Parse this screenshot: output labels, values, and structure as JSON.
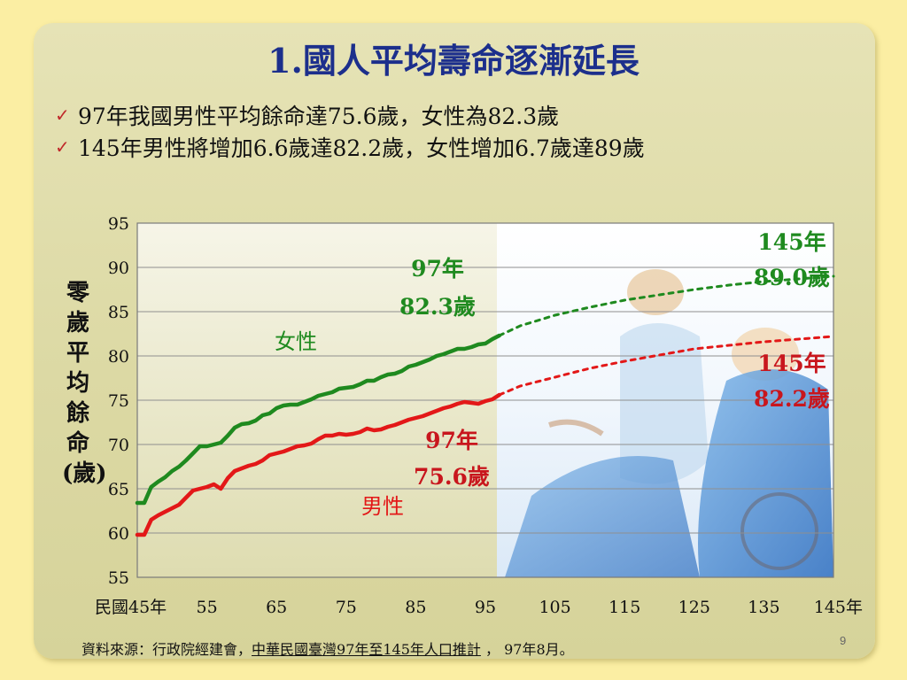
{
  "page": {
    "title": "1.國人平均壽命逐漸延長",
    "bullets": [
      "97年我國男性平均餘命達75.6歲，女性為82.3歲",
      "145年男性將增加6.6歲達82.2歲，女性增加6.7歲達89歲"
    ],
    "source_prefix": "資料來源：行政院經建會，",
    "source_link": "中華民國臺灣97年至145年人口推計",
    "source_suffix": " ， 97年8月。",
    "page_number": "9"
  },
  "chart_data": {
    "type": "line",
    "ylabel": "零歲平均餘命(歲)",
    "ylim": [
      55,
      95
    ],
    "yticks": [
      "95",
      "90",
      "85",
      "80",
      "75",
      "70",
      "65",
      "60",
      "55"
    ],
    "xlim": [
      45,
      145
    ],
    "xtick_labels": [
      "民國45年",
      "55",
      "65",
      "75",
      "85",
      "95",
      "105",
      "115",
      "125",
      "135",
      "145年"
    ],
    "colors": {
      "female": "#1f8a1f",
      "male": "#e31818"
    },
    "series": [
      {
        "name": "女性",
        "color": "#1f8a1f",
        "actual": {
          "x": [
            45,
            46,
            47,
            48,
            49,
            50,
            51,
            52,
            53,
            54,
            55,
            56,
            57,
            58,
            59,
            60,
            61,
            62,
            63,
            64,
            65,
            66,
            67,
            68,
            69,
            70,
            71,
            72,
            73,
            74,
            75,
            76,
            77,
            78,
            79,
            80,
            81,
            82,
            83,
            84,
            85,
            86,
            87,
            88,
            89,
            90,
            91,
            92,
            93,
            94,
            95,
            96,
            97
          ],
          "y": [
            63.4,
            63.4,
            65.2,
            65.8,
            66.3,
            67.0,
            67.5,
            68.2,
            69.0,
            69.8,
            69.8,
            70.0,
            70.2,
            71.0,
            71.9,
            72.3,
            72.4,
            72.7,
            73.3,
            73.5,
            74.1,
            74.4,
            74.5,
            74.5,
            74.8,
            75.1,
            75.5,
            75.7,
            75.9,
            76.3,
            76.4,
            76.5,
            76.8,
            77.2,
            77.2,
            77.6,
            77.9,
            78.0,
            78.3,
            78.8,
            79.0,
            79.3,
            79.6,
            80.0,
            80.2,
            80.5,
            80.8,
            80.8,
            81.0,
            81.3,
            81.4,
            81.9,
            82.3
          ]
        },
        "projected": {
          "x": [
            97,
            100,
            105,
            110,
            115,
            120,
            125,
            130,
            135,
            140,
            145
          ],
          "y": [
            82.3,
            83.4,
            84.6,
            85.5,
            86.3,
            86.9,
            87.5,
            88.0,
            88.4,
            88.7,
            89.0
          ]
        }
      },
      {
        "name": "男性",
        "color": "#e31818",
        "actual": {
          "x": [
            45,
            46,
            47,
            48,
            49,
            50,
            51,
            52,
            53,
            54,
            55,
            56,
            57,
            58,
            59,
            60,
            61,
            62,
            63,
            64,
            65,
            66,
            67,
            68,
            69,
            70,
            71,
            72,
            73,
            74,
            75,
            76,
            77,
            78,
            79,
            80,
            81,
            82,
            83,
            84,
            85,
            86,
            87,
            88,
            89,
            90,
            91,
            92,
            93,
            94,
            95,
            96,
            97
          ],
          "y": [
            59.8,
            59.8,
            61.5,
            62.0,
            62.4,
            62.8,
            63.2,
            64.0,
            64.8,
            65.0,
            65.2,
            65.5,
            65.0,
            66.2,
            67.0,
            67.3,
            67.6,
            67.8,
            68.2,
            68.8,
            69.0,
            69.2,
            69.5,
            69.8,
            69.9,
            70.1,
            70.6,
            71.0,
            71.0,
            71.2,
            71.1,
            71.2,
            71.4,
            71.8,
            71.6,
            71.7,
            72.0,
            72.2,
            72.5,
            72.8,
            73.0,
            73.2,
            73.5,
            73.8,
            74.1,
            74.3,
            74.6,
            74.8,
            74.7,
            74.6,
            74.9,
            75.1,
            75.6
          ]
        },
        "projected": {
          "x": [
            97,
            100,
            105,
            110,
            115,
            120,
            125,
            130,
            135,
            140,
            145
          ],
          "y": [
            75.6,
            76.6,
            77.6,
            78.6,
            79.4,
            80.1,
            80.8,
            81.2,
            81.6,
            81.9,
            82.2
          ]
        }
      }
    ],
    "annotations": [
      {
        "year": "97年",
        "value": "82.3歲",
        "color": "#1f8a1f"
      },
      {
        "year": "97年",
        "value": "75.6歲",
        "color": "#c8161d"
      },
      {
        "year": "145年",
        "value": "89.0歲",
        "color": "#1f8a1f"
      },
      {
        "year": "145年",
        "value": "82.2歲",
        "color": "#c8161d"
      }
    ],
    "grid": true
  }
}
